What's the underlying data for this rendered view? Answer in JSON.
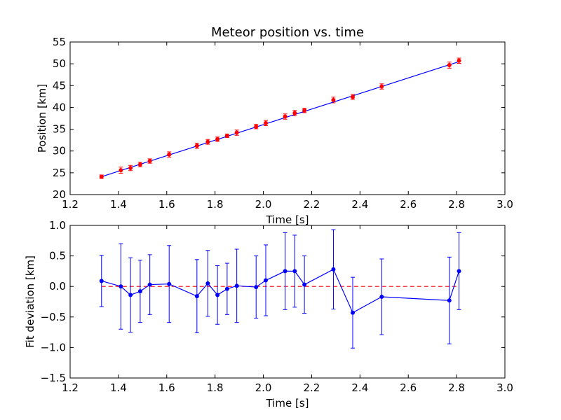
{
  "chart_data": [
    {
      "type": "line",
      "title": "Meteor position vs. time",
      "xlabel": "Time [s]",
      "ylabel": "Position [km]",
      "xlim": [
        1.2,
        3.0
      ],
      "ylim": [
        20,
        55
      ],
      "xticks": [
        "1.2",
        "1.4",
        "1.6",
        "1.8",
        "2.0",
        "2.2",
        "2.4",
        "2.6",
        "2.8",
        "3.0"
      ],
      "yticks": [
        "20",
        "25",
        "30",
        "35",
        "40",
        "45",
        "50",
        "55"
      ],
      "grid": false,
      "legend": "none",
      "series": [
        {
          "kind": "measurements",
          "color": "#ff0000",
          "points": [
            {
              "x": 1.33,
              "y": 24.1,
              "err": 0.4
            },
            {
              "x": 1.41,
              "y": 25.6,
              "err": 0.7
            },
            {
              "x": 1.45,
              "y": 26.1,
              "err": 0.6
            },
            {
              "x": 1.49,
              "y": 26.9,
              "err": 0.5
            },
            {
              "x": 1.53,
              "y": 27.7,
              "err": 0.5
            },
            {
              "x": 1.61,
              "y": 29.2,
              "err": 0.6
            },
            {
              "x": 1.725,
              "y": 31.2,
              "err": 0.6
            },
            {
              "x": 1.77,
              "y": 32.1,
              "err": 0.55
            },
            {
              "x": 1.81,
              "y": 32.7,
              "err": 0.5
            },
            {
              "x": 1.85,
              "y": 33.5,
              "err": 0.4
            },
            {
              "x": 1.89,
              "y": 34.2,
              "err": 0.6
            },
            {
              "x": 1.97,
              "y": 35.6,
              "err": 0.5
            },
            {
              "x": 2.01,
              "y": 36.4,
              "err": 0.6
            },
            {
              "x": 2.09,
              "y": 37.9,
              "err": 0.6
            },
            {
              "x": 2.13,
              "y": 38.7,
              "err": 0.6
            },
            {
              "x": 2.17,
              "y": 39.3,
              "err": 0.5
            },
            {
              "x": 2.29,
              "y": 41.7,
              "err": 0.65
            },
            {
              "x": 2.37,
              "y": 42.4,
              "err": 0.55
            },
            {
              "x": 2.49,
              "y": 44.8,
              "err": 0.6
            },
            {
              "x": 2.77,
              "y": 49.7,
              "err": 0.7
            },
            {
              "x": 2.81,
              "y": 50.7,
              "err": 0.6
            }
          ]
        },
        {
          "kind": "fit",
          "color": "#0000ff",
          "points": [
            {
              "x": 1.33,
              "y": 24.1
            },
            {
              "x": 2.81,
              "y": 50.5
            }
          ]
        }
      ]
    },
    {
      "type": "line",
      "title": "",
      "xlabel": "Time [s]",
      "ylabel": "Fit deviation [km]",
      "xlim": [
        1.2,
        3.0
      ],
      "ylim": [
        -1.5,
        1.0
      ],
      "xticks": [
        "1.2",
        "1.4",
        "1.6",
        "1.8",
        "2.0",
        "2.2",
        "2.4",
        "2.6",
        "2.8",
        "3.0"
      ],
      "yticks": [
        "−1.5",
        "−1.0",
        "−0.5",
        "0.0",
        "0.5",
        "1.0"
      ],
      "grid": false,
      "legend": "none",
      "series": [
        {
          "kind": "deviation",
          "color": "#0000ff",
          "points": [
            {
              "x": 1.33,
              "y": 0.09,
              "err": 0.42
            },
            {
              "x": 1.41,
              "y": 0.0,
              "err": 0.7
            },
            {
              "x": 1.45,
              "y": -0.14,
              "err": 0.61
            },
            {
              "x": 1.49,
              "y": -0.08,
              "err": 0.51
            },
            {
              "x": 1.53,
              "y": 0.03,
              "err": 0.49
            },
            {
              "x": 1.61,
              "y": 0.04,
              "err": 0.63
            },
            {
              "x": 1.725,
              "y": -0.16,
              "err": 0.6
            },
            {
              "x": 1.77,
              "y": 0.05,
              "err": 0.54
            },
            {
              "x": 1.81,
              "y": -0.14,
              "err": 0.48
            },
            {
              "x": 1.85,
              "y": -0.04,
              "err": 0.42
            },
            {
              "x": 1.89,
              "y": 0.01,
              "err": 0.6
            },
            {
              "x": 1.97,
              "y": -0.01,
              "err": 0.51
            },
            {
              "x": 2.01,
              "y": 0.1,
              "err": 0.58
            },
            {
              "x": 2.09,
              "y": 0.25,
              "err": 0.63
            },
            {
              "x": 2.13,
              "y": 0.25,
              "err": 0.59
            },
            {
              "x": 2.17,
              "y": 0.03,
              "err": 0.47
            },
            {
              "x": 2.29,
              "y": 0.28,
              "err": 0.65
            },
            {
              "x": 2.37,
              "y": -0.43,
              "err": 0.58
            },
            {
              "x": 2.49,
              "y": -0.17,
              "err": 0.62
            },
            {
              "x": 2.77,
              "y": -0.23,
              "err": 0.71
            },
            {
              "x": 2.81,
              "y": 0.25,
              "err": 0.63
            }
          ]
        },
        {
          "kind": "zero-line",
          "color": "#ff0000",
          "style": "dashed",
          "points": [
            {
              "x": 1.33,
              "y": 0.0
            },
            {
              "x": 2.81,
              "y": 0.0
            }
          ]
        }
      ]
    }
  ]
}
